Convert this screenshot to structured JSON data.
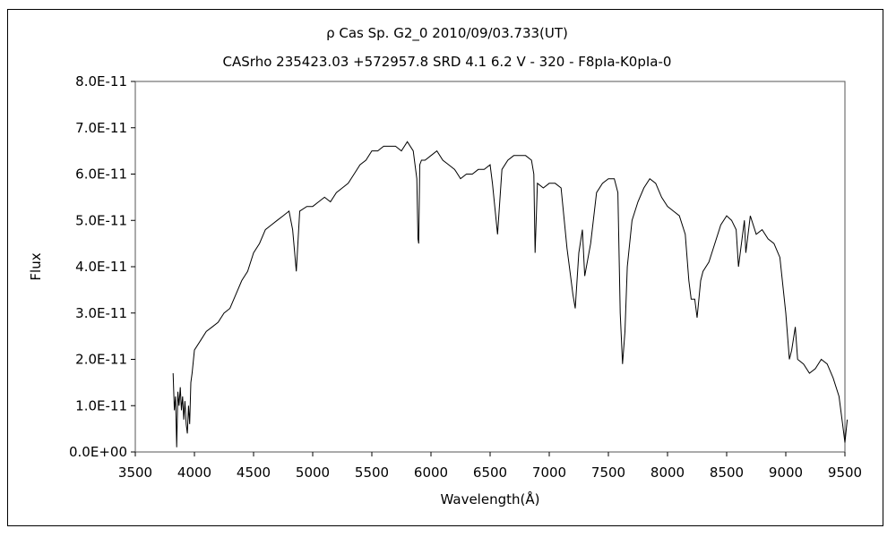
{
  "chart_data": {
    "type": "line",
    "title": "ρ  Cas    Sp. G2_0    2010/09/03.733(UT)",
    "subtitle": "CASrho 235423.03 +572957.8 SRD 4.1 6.2 V - 320 - F8pIa-K0pIa-0",
    "xlabel": "Wavelength(Å)",
    "ylabel": "Flux",
    "xlim": [
      3500,
      9500
    ],
    "ylim": [
      0,
      8e-11
    ],
    "x_ticks": [
      3500,
      4000,
      4500,
      5000,
      5500,
      6000,
      6500,
      7000,
      7500,
      8000,
      8500,
      9000,
      9500
    ],
    "x_tick_labels": [
      "3500",
      "4000",
      "4500",
      "5000",
      "5500",
      "6000",
      "6500",
      "7000",
      "7500",
      "8000",
      "8500",
      "9000",
      "9500"
    ],
    "y_ticks": [
      0,
      1e-11,
      2e-11,
      3e-11,
      4e-11,
      5e-11,
      6e-11,
      7e-11,
      8e-11
    ],
    "y_tick_labels": [
      "0.0E+00",
      "1.0E-11",
      "2.0E-11",
      "3.0E-11",
      "4.0E-11",
      "5.0E-11",
      "6.0E-11",
      "7.0E-11",
      "8.0E-11"
    ],
    "grid": false,
    "series": [
      {
        "x": [
          3820,
          3830,
          3840,
          3850,
          3860,
          3870,
          3880,
          3890,
          3900,
          3910,
          3920,
          3930,
          3940,
          3950,
          3960,
          3970,
          3980,
          4000,
          4050,
          4100,
          4150,
          4200,
          4250,
          4300,
          4350,
          4400,
          4450,
          4500,
          4550,
          4600,
          4650,
          4700,
          4750,
          4800,
          4830,
          4861,
          4890,
          4950,
          5000,
          5050,
          5100,
          5150,
          5200,
          5250,
          5300,
          5350,
          5400,
          5450,
          5500,
          5550,
          5600,
          5650,
          5700,
          5750,
          5800,
          5850,
          5880,
          5890,
          5896,
          5905,
          5920,
          5950,
          6000,
          6050,
          6100,
          6150,
          6200,
          6250,
          6300,
          6350,
          6400,
          6450,
          6500,
          6520,
          6563,
          6600,
          6650,
          6700,
          6750,
          6800,
          6850,
          6870,
          6880,
          6900,
          6950,
          7000,
          7050,
          7100,
          7150,
          7180,
          7200,
          7220,
          7250,
          7280,
          7300,
          7350,
          7400,
          7450,
          7500,
          7550,
          7580,
          7600,
          7620,
          7640,
          7660,
          7700,
          7750,
          7800,
          7850,
          7900,
          7950,
          8000,
          8050,
          8100,
          8150,
          8180,
          8200,
          8230,
          8250,
          8280,
          8300,
          8350,
          8400,
          8450,
          8500,
          8542,
          8580,
          8600,
          8650,
          8662,
          8700,
          8750,
          8800,
          8850,
          8900,
          8950,
          9000,
          9030,
          9050,
          9080,
          9100,
          9150,
          9200,
          9250,
          9300,
          9350,
          9400,
          9450,
          9480,
          9500,
          9520
        ],
        "values": [
          1.7e-11,
          9e-12,
          1.2e-11,
          1e-12,
          1.3e-11,
          1e-11,
          1.4e-11,
          9e-12,
          1.2e-11,
          7e-12,
          1.1e-11,
          6e-12,
          4e-12,
          1e-11,
          6e-12,
          1.5e-11,
          1.7e-11,
          2.2e-11,
          2.4e-11,
          2.6e-11,
          2.7e-11,
          2.8e-11,
          3e-11,
          3.1e-11,
          3.4e-11,
          3.7e-11,
          3.9e-11,
          4.3e-11,
          4.5e-11,
          4.8e-11,
          4.9e-11,
          5e-11,
          5.1e-11,
          5.2e-11,
          4.8e-11,
          3.9e-11,
          5.2e-11,
          5.3e-11,
          5.3e-11,
          5.4e-11,
          5.5e-11,
          5.4e-11,
          5.6e-11,
          5.7e-11,
          5.8e-11,
          6e-11,
          6.2e-11,
          6.3e-11,
          6.5e-11,
          6.5e-11,
          6.6e-11,
          6.6e-11,
          6.6e-11,
          6.5e-11,
          6.7e-11,
          6.5e-11,
          5.9e-11,
          4.6e-11,
          4.5e-11,
          6.2e-11,
          6.3e-11,
          6.3e-11,
          6.4e-11,
          6.5e-11,
          6.3e-11,
          6.2e-11,
          6.1e-11,
          5.9e-11,
          6e-11,
          6e-11,
          6.1e-11,
          6.1e-11,
          6.2e-11,
          5.8e-11,
          4.7e-11,
          6.1e-11,
          6.3e-11,
          6.4e-11,
          6.4e-11,
          6.4e-11,
          6.3e-11,
          6e-11,
          4.3e-11,
          5.8e-11,
          5.7e-11,
          5.8e-11,
          5.8e-11,
          5.7e-11,
          4.4e-11,
          3.8e-11,
          3.4e-11,
          3.1e-11,
          4.3e-11,
          4.8e-11,
          3.8e-11,
          4.5e-11,
          5.6e-11,
          5.8e-11,
          5.9e-11,
          5.9e-11,
          5.6e-11,
          3e-11,
          1.9e-11,
          2.6e-11,
          4e-11,
          5e-11,
          5.4e-11,
          5.7e-11,
          5.9e-11,
          5.8e-11,
          5.5e-11,
          5.3e-11,
          5.2e-11,
          5.1e-11,
          4.7e-11,
          3.7e-11,
          3.3e-11,
          3.3e-11,
          2.9e-11,
          3.7e-11,
          3.9e-11,
          4.1e-11,
          4.5e-11,
          4.9e-11,
          5.1e-11,
          5e-11,
          4.8e-11,
          4e-11,
          5e-11,
          4.3e-11,
          5.1e-11,
          4.7e-11,
          4.8e-11,
          4.6e-11,
          4.5e-11,
          4.2e-11,
          3e-11,
          2e-11,
          2.2e-11,
          2.7e-11,
          2e-11,
          1.9e-11,
          1.7e-11,
          1.8e-11,
          2e-11,
          1.9e-11,
          1.6e-11,
          1.2e-11,
          6e-12,
          2e-12,
          7e-12
        ]
      }
    ]
  }
}
